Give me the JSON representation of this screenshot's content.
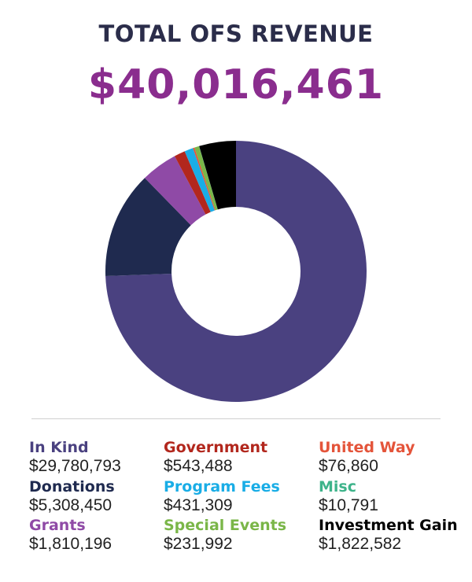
{
  "header": {
    "title": "TOTAL OFS REVENUE",
    "total": "$40,016,461"
  },
  "colors": {
    "title": "#2b2d4a",
    "total": "#8a2d8e"
  },
  "chart_data": {
    "type": "pie",
    "title": "TOTAL OFS REVENUE",
    "donut": true,
    "legend": "bottom",
    "categories": [
      "In Kind",
      "Donations",
      "Grants",
      "Government",
      "Program Fees",
      "Special Events",
      "United Way",
      "Misc",
      "Investment Gain"
    ],
    "values": [
      29780793,
      5308450,
      1810196,
      543488,
      431309,
      231992,
      76860,
      10791,
      1822582
    ],
    "value_labels": [
      "$29,780,793",
      "$5,308,450",
      "$1,810,196",
      "$543,488",
      "$431,309",
      "$231,992",
      "$76,860",
      "$10,791",
      "$1,822,582"
    ],
    "colors": [
      "#4a4180",
      "#1f2a4f",
      "#8f4aa6",
      "#b2271d",
      "#19ade6",
      "#7ab648",
      "#e4543a",
      "#3db38a",
      "#000000"
    ]
  }
}
